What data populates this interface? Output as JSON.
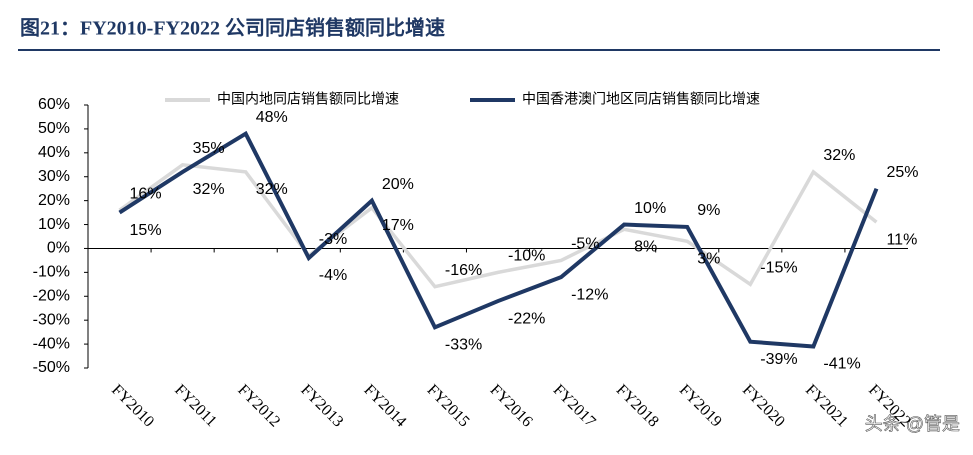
{
  "chart_data": {
    "type": "line",
    "title": "图21：FY2010-FY2022 公司同店销售额同比增速",
    "categories": [
      "FY2010",
      "FY2011",
      "FY2012",
      "FY2013",
      "FY2014",
      "FY2015",
      "FY2016",
      "FY2017",
      "FY2018",
      "FY2019",
      "FY2020",
      "FY2021",
      "FY2022"
    ],
    "series": [
      {
        "name": "中国内地同店销售额同比增速",
        "color": "#d9d9d9",
        "values": [
          16,
          35,
          32,
          -3,
          17,
          -16,
          -10,
          -5,
          8,
          3,
          -15,
          32,
          11
        ],
        "value_labels": [
          "16%",
          "35%",
          "32%",
          "-3%",
          "17%",
          "-16%",
          "-10%",
          "-5%",
          "8%",
          "3%",
          "-15%",
          "32%",
          "11%"
        ]
      },
      {
        "name": "中国香港澳门地区同店销售额同比增速",
        "color": "#1f3864",
        "values": [
          15,
          32,
          48,
          -4,
          20,
          -33,
          -22,
          -12,
          10,
          9,
          -39,
          -41,
          25
        ],
        "value_labels": [
          "15%",
          "32%",
          "48%",
          "-4%",
          "20%",
          "-33%",
          "-22%",
          "-12%",
          "10%",
          "9%",
          "-39%",
          "-41%",
          "25%"
        ]
      }
    ],
    "ylim": [
      -50,
      60
    ],
    "yticks": [
      {
        "value": -50,
        "label": "-50%"
      },
      {
        "value": -40,
        "label": "-40%"
      },
      {
        "value": -30,
        "label": "-30%"
      },
      {
        "value": -20,
        "label": "-20%"
      },
      {
        "value": -10,
        "label": "-10%"
      },
      {
        "value": 0,
        "label": "0%"
      },
      {
        "value": 10,
        "label": "10%"
      },
      {
        "value": 20,
        "label": "20%"
      },
      {
        "value": 30,
        "label": "30%"
      },
      {
        "value": 40,
        "label": "40%"
      },
      {
        "value": 50,
        "label": "50%"
      },
      {
        "value": 60,
        "label": "60%"
      }
    ],
    "legend": "top",
    "watermark": "头条 @管是"
  }
}
